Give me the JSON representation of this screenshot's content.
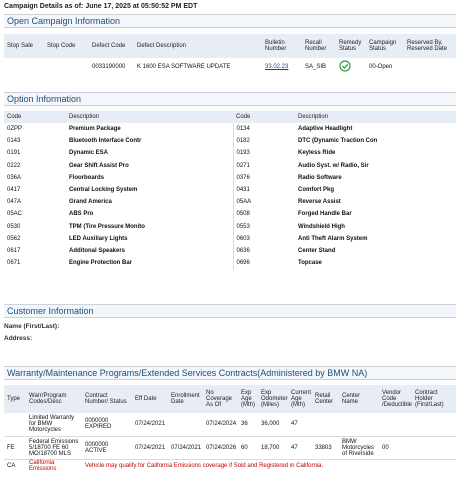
{
  "header": {
    "label": "Campaign Details as of:",
    "timestamp": "June 17, 2025 at 05:50:52 PM EDT"
  },
  "open_campaign": {
    "title": "Open Campaign Information",
    "columns": [
      "Stop Sale",
      "Stop Code",
      "Defect Code",
      "Defect Description",
      "Bulletin Number",
      "Recall Number",
      "Remedy Status",
      "Campaign Status",
      "Reserved By, Reserved Date"
    ],
    "rows": [
      [
        null,
        null,
        "0033190000",
        "K 1600 ESA SOFTWARE UPDATE",
        "33.02.23",
        "SA_SIB",
        null,
        "00-Open",
        null
      ]
    ]
  },
  "option_information": {
    "title": "Option Information",
    "columns": [
      "Code",
      "Description",
      "Code",
      "Description"
    ],
    "rows": [
      [
        "0ZPP",
        "Premium Package",
        "0134",
        "Adaptive Headlight"
      ],
      [
        "0143",
        "Bluetooth Interface Contr",
        "0182",
        "DTC (Dynamic Traction Con"
      ],
      [
        "0191",
        "Dynamic ESA",
        "0193",
        "Keyless Ride"
      ],
      [
        "0222",
        "Gear Shift Assist Pro",
        "0271",
        "Audio Syst. w/ Radio, Sir"
      ],
      [
        "036A",
        "Floorboards",
        "0376",
        "Radio Software"
      ],
      [
        "0417",
        "Central Locking System",
        "0431",
        "Comfort Pkg"
      ],
      [
        "047A",
        "Grand America",
        "05AA",
        "Reverse Assist"
      ],
      [
        "05AC",
        "ABS Pro",
        "0508",
        "Forged Handle Bar"
      ],
      [
        "0530",
        "TPM (Tire Pressure Monito",
        "0553",
        "Windshield High"
      ],
      [
        "0562",
        "LED Auxiliary Lights",
        "0603",
        "Anti Theft Alarm System"
      ],
      [
        "0617",
        "Additonal Speakers",
        "0636",
        "Center Stand"
      ],
      [
        "0671",
        "Engine Protection Bar",
        "0696",
        "Topcase"
      ]
    ]
  },
  "customer_information": {
    "title": "Customer Information",
    "fields": [
      "Name (First/Last):",
      "Address:"
    ]
  },
  "warranty": {
    "title": "Warranty/Maintenance Programs/Extended Services Contracts(Administered by BMW NA)",
    "columns": [
      "Type",
      "Warr/Program Codes/Desc",
      "Contract Number/ Status",
      "Eff Date",
      "Enrollment Date",
      "No Coverage As Of",
      "Exp Age (Mth)",
      "Exp Odometer (Miles)",
      "Current Age (Mth)",
      "Retail Center",
      "Center Name",
      "Vendor Code /Deductible",
      "Contract Holder (First/Last)"
    ],
    "rows": [
      [
        null,
        "Limited Warranty for BMW Motorcycles",
        "0000000 EXPIRED",
        "07/24/2021",
        null,
        "07/24/2024",
        "36",
        "36,000",
        "47",
        null,
        null,
        null,
        null
      ],
      [
        "FE",
        "Federal Emissions 5/18700 FE 60 MO/18700 MLS",
        "0000000 ACTIVE",
        "07/24/2021",
        "07/24/2021",
        "07/24/2026",
        "60",
        "18,700",
        "47",
        "33803",
        "BMW Motorcycles of Riverside",
        "00",
        null
      ]
    ],
    "ca_row": {
      "type": "CA",
      "program": "California Emissions",
      "note": "Vehicle may qualify for California Emissions coverage if Sold and Registered in California."
    }
  }
}
